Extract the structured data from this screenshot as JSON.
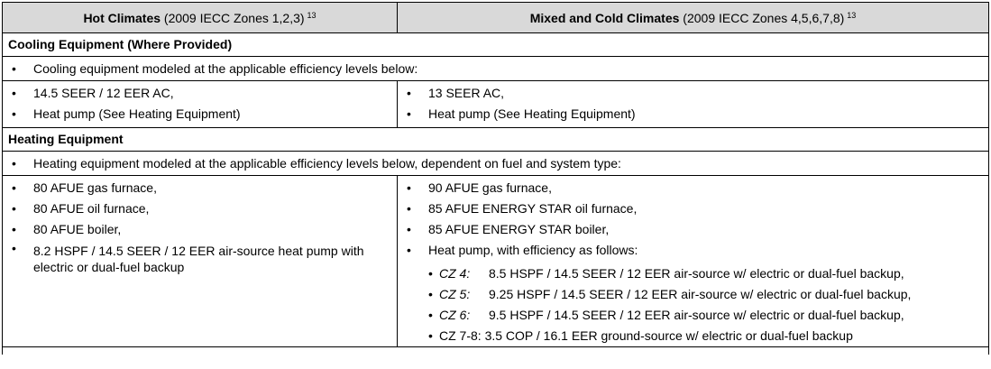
{
  "header": {
    "left_bold": "Hot Climates",
    "left_rest": " (2009 IECC Zones 1,2,3)",
    "left_sup": "13",
    "right_bold": "Mixed and Cold Climates",
    "right_rest": " (2009 IECC Zones 4,5,6,7,8)",
    "right_sup": "13"
  },
  "cooling": {
    "title": "Cooling Equipment (Where Provided)",
    "intro": "Cooling equipment modeled at the applicable efficiency levels below:",
    "hot": [
      "14.5 SEER / 12 EER AC,",
      "Heat pump (See Heating Equipment)"
    ],
    "cold": [
      "13 SEER AC,",
      "Heat pump (See Heating Equipment)"
    ]
  },
  "heating": {
    "title": "Heating Equipment",
    "intro": "Heating equipment modeled at the applicable efficiency levels below, dependent on fuel and system type:",
    "hot": [
      "80 AFUE gas furnace,",
      "80 AFUE oil furnace,",
      "80 AFUE boiler,",
      "8.2 HSPF / 14.5 SEER / 12 EER air-source heat pump with electric or dual-fuel backup"
    ],
    "cold": [
      "90 AFUE gas furnace,",
      "85 AFUE ENERGY STAR oil furnace,",
      "85 AFUE ENERGY STAR boiler,",
      "Heat pump, with efficiency as follows:"
    ],
    "cold_sub": [
      {
        "zone": "CZ 4:",
        "text": "8.5 HSPF / 14.5 SEER / 12 EER air-source w/ electric or dual-fuel backup,"
      },
      {
        "zone": "CZ 5:",
        "text": "9.25 HSPF / 14.5 SEER / 12 EER air-source w/ electric or dual-fuel backup,"
      },
      {
        "zone": "CZ 6:",
        "text": "9.5 HSPF / 14.5 SEER / 12 EER air-source w/ electric or dual-fuel backup,"
      },
      {
        "zone": "CZ 7-8:",
        "text": "3.5 COP / 16.1 EER ground-source w/ electric or dual-fuel backup"
      }
    ]
  }
}
